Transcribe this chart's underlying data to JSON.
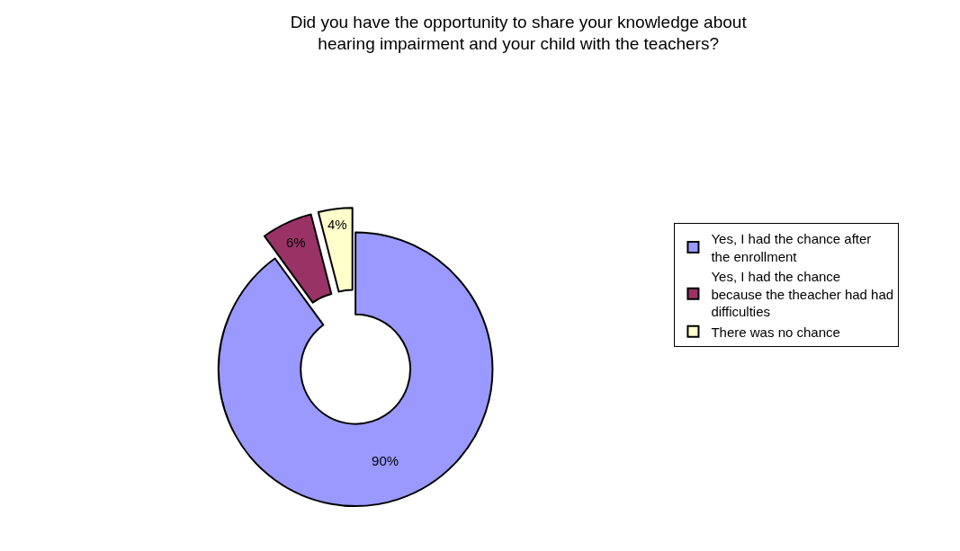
{
  "chart_data": {
    "type": "donut",
    "title": "Did you have the opportunity to share your knowledge about\nhearing impairment and your child with the teachers?",
    "categories": [
      "Yes, I had the chance after the enrollment",
      "Yes, I had the chance because the theacher had had difficulties",
      "There was no chance"
    ],
    "values": [
      90,
      6,
      4
    ],
    "colors": [
      "#9999ff",
      "#993366",
      "#ffffcc"
    ],
    "value_labels": [
      "90%",
      "6%",
      "4%"
    ],
    "legend": "right"
  }
}
